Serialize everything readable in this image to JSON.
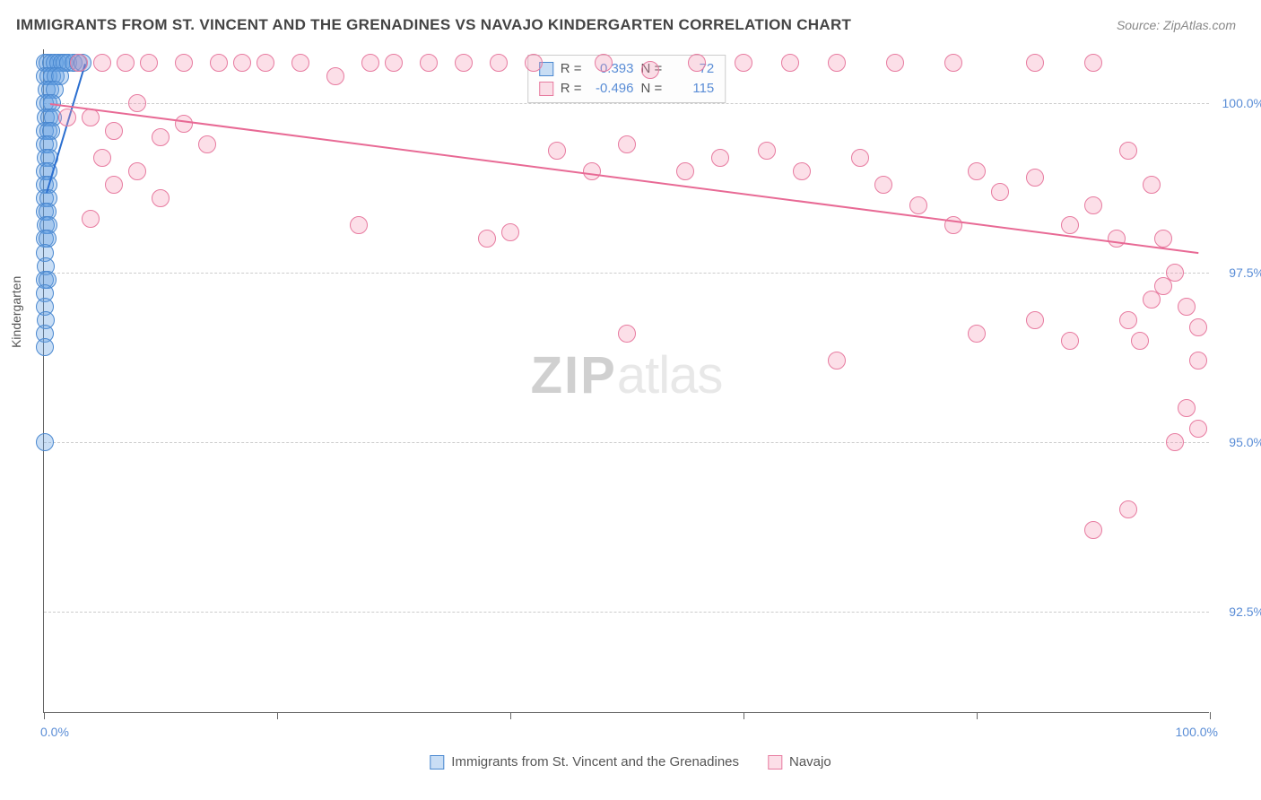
{
  "title": "IMMIGRANTS FROM ST. VINCENT AND THE GRENADINES VS NAVAJO KINDERGARTEN CORRELATION CHART",
  "source": "Source: ZipAtlas.com",
  "y_axis_title": "Kindergarten",
  "watermark_zip": "ZIP",
  "watermark_atlas": "atlas",
  "chart": {
    "type": "scatter",
    "x_domain": [
      0,
      100
    ],
    "y_domain": [
      91.0,
      100.8
    ],
    "x_labels": {
      "min": "0.0%",
      "max": "100.0%"
    },
    "y_ticks": [
      {
        "v": 92.5,
        "label": "92.5%"
      },
      {
        "v": 95.0,
        "label": "95.0%"
      },
      {
        "v": 97.5,
        "label": "97.5%"
      },
      {
        "v": 100.0,
        "label": "100.0%"
      }
    ],
    "x_tick_positions": [
      0,
      20,
      40,
      60,
      80,
      100
    ],
    "colors": {
      "series_a_fill": "rgba(100,160,225,0.35)",
      "series_a_stroke": "#4a88d0",
      "series_b_fill": "rgba(245,150,180,0.30)",
      "series_b_stroke": "#e77ba0",
      "trend_a": "#2b6fd0",
      "trend_b": "#e86a95",
      "grid": "#cccccc",
      "axis": "#666666",
      "tick_label": "#5a8dd6"
    },
    "marker_radius": 10,
    "trend_width": 2,
    "series": [
      {
        "key": "a",
        "name": "Immigrants from St. Vincent and the Grenadines",
        "R": "0.393",
        "N": "72",
        "trend": {
          "x1": 0.2,
          "y1": 98.7,
          "x2": 3.5,
          "y2": 100.6
        },
        "points": [
          [
            0.1,
            100.6
          ],
          [
            0.3,
            100.6
          ],
          [
            0.6,
            100.6
          ],
          [
            0.9,
            100.6
          ],
          [
            1.2,
            100.6
          ],
          [
            1.5,
            100.6
          ],
          [
            1.8,
            100.6
          ],
          [
            2.1,
            100.6
          ],
          [
            2.5,
            100.6
          ],
          [
            2.9,
            100.6
          ],
          [
            3.3,
            100.6
          ],
          [
            0.1,
            100.4
          ],
          [
            0.4,
            100.4
          ],
          [
            0.7,
            100.4
          ],
          [
            1.0,
            100.4
          ],
          [
            1.4,
            100.4
          ],
          [
            0.2,
            100.2
          ],
          [
            0.5,
            100.2
          ],
          [
            0.9,
            100.2
          ],
          [
            0.1,
            100.0
          ],
          [
            0.4,
            100.0
          ],
          [
            0.7,
            100.0
          ],
          [
            0.15,
            99.8
          ],
          [
            0.45,
            99.8
          ],
          [
            0.8,
            99.8
          ],
          [
            0.1,
            99.6
          ],
          [
            0.35,
            99.6
          ],
          [
            0.65,
            99.6
          ],
          [
            0.1,
            99.4
          ],
          [
            0.4,
            99.4
          ],
          [
            0.15,
            99.2
          ],
          [
            0.45,
            99.2
          ],
          [
            0.1,
            99.0
          ],
          [
            0.35,
            99.0
          ],
          [
            0.1,
            98.8
          ],
          [
            0.4,
            98.8
          ],
          [
            0.1,
            98.6
          ],
          [
            0.35,
            98.6
          ],
          [
            0.1,
            98.4
          ],
          [
            0.3,
            98.4
          ],
          [
            0.15,
            98.2
          ],
          [
            0.4,
            98.2
          ],
          [
            0.1,
            98.0
          ],
          [
            0.3,
            98.0
          ],
          [
            0.1,
            97.8
          ],
          [
            0.15,
            97.6
          ],
          [
            0.1,
            97.4
          ],
          [
            0.3,
            97.4
          ],
          [
            0.1,
            97.2
          ],
          [
            0.1,
            97.0
          ],
          [
            0.15,
            96.8
          ],
          [
            0.1,
            96.6
          ],
          [
            0.1,
            96.4
          ],
          [
            0.1,
            95.0
          ]
        ]
      },
      {
        "key": "b",
        "name": "Navajo",
        "R": "-0.496",
        "N": "115",
        "trend": {
          "x1": 0.5,
          "y1": 100.0,
          "x2": 99.0,
          "y2": 97.8
        },
        "points": [
          [
            3,
            100.6
          ],
          [
            5,
            100.6
          ],
          [
            7,
            100.6
          ],
          [
            9,
            100.6
          ],
          [
            12,
            100.6
          ],
          [
            15,
            100.6
          ],
          [
            17,
            100.6
          ],
          [
            19,
            100.6
          ],
          [
            22,
            100.6
          ],
          [
            25,
            100.4
          ],
          [
            28,
            100.6
          ],
          [
            30,
            100.6
          ],
          [
            33,
            100.6
          ],
          [
            36,
            100.6
          ],
          [
            39,
            100.6
          ],
          [
            42,
            100.6
          ],
          [
            48,
            100.6
          ],
          [
            52,
            100.5
          ],
          [
            56,
            100.6
          ],
          [
            60,
            100.6
          ],
          [
            64,
            100.6
          ],
          [
            68,
            100.6
          ],
          [
            73,
            100.6
          ],
          [
            78,
            100.6
          ],
          [
            85,
            100.6
          ],
          [
            90,
            100.6
          ],
          [
            2,
            99.8
          ],
          [
            4,
            99.8
          ],
          [
            6,
            99.6
          ],
          [
            8,
            100.0
          ],
          [
            10,
            99.5
          ],
          [
            12,
            99.7
          ],
          [
            14,
            99.4
          ],
          [
            5,
            99.2
          ],
          [
            8,
            99.0
          ],
          [
            6,
            98.8
          ],
          [
            10,
            98.6
          ],
          [
            4,
            98.3
          ],
          [
            27,
            98.2
          ],
          [
            38,
            98.0
          ],
          [
            40,
            98.1
          ],
          [
            44,
            99.3
          ],
          [
            47,
            99.0
          ],
          [
            50,
            99.4
          ],
          [
            55,
            99.0
          ],
          [
            58,
            99.2
          ],
          [
            62,
            99.3
          ],
          [
            65,
            99.0
          ],
          [
            70,
            99.2
          ],
          [
            72,
            98.8
          ],
          [
            75,
            98.5
          ],
          [
            78,
            98.2
          ],
          [
            80,
            99.0
          ],
          [
            82,
            98.7
          ],
          [
            85,
            98.9
          ],
          [
            88,
            98.2
          ],
          [
            90,
            98.5
          ],
          [
            92,
            98.0
          ],
          [
            50,
            96.6
          ],
          [
            68,
            96.2
          ],
          [
            80,
            96.6
          ],
          [
            85,
            96.8
          ],
          [
            88,
            96.5
          ],
          [
            93,
            99.3
          ],
          [
            95,
            98.8
          ],
          [
            96,
            98.0
          ],
          [
            97,
            97.5
          ],
          [
            98,
            97.0
          ],
          [
            99,
            96.7
          ],
          [
            95,
            97.1
          ],
          [
            96,
            97.3
          ],
          [
            93,
            96.8
          ],
          [
            94,
            96.5
          ],
          [
            99,
            96.2
          ],
          [
            98,
            95.5
          ],
          [
            99,
            95.2
          ],
          [
            97,
            95.0
          ],
          [
            93,
            94.0
          ],
          [
            90,
            93.7
          ]
        ]
      }
    ]
  },
  "legend_bottom": {
    "a": "Immigrants from St. Vincent and the Grenadines",
    "b": "Navajo"
  },
  "legend_stats_labels": {
    "R": "R =",
    "N": "N ="
  }
}
